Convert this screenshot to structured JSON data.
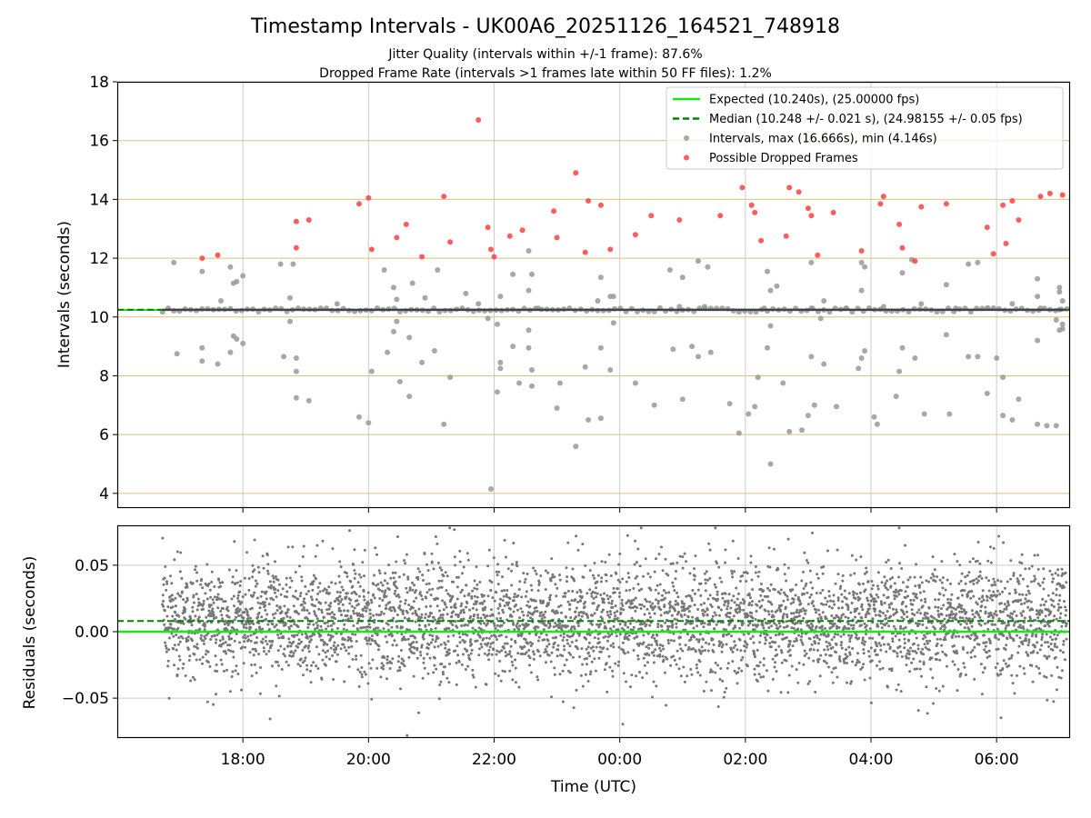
{
  "chart_data": [
    {
      "type": "scatter",
      "title": "Timestamp Intervals - UK00A6_20251126_164521_748918",
      "subtitle_1": "Jitter Quality (intervals within +/-1 frame): 87.6%",
      "subtitle_2": "Dropped Frame Rate (intervals >1 frames late within 50 FF files): 1.2%",
      "xlabel": "",
      "ylabel": "Intervals (seconds)",
      "xlim_hours": [
        16.0,
        31.17
      ],
      "ylim": [
        3.5,
        18
      ],
      "yticks": [
        4,
        6,
        8,
        10,
        12,
        14,
        16,
        18
      ],
      "ytick_labels": [
        "4",
        "6",
        "8",
        "10",
        "12",
        "14",
        "16",
        "18"
      ],
      "grid": true,
      "legend_position": "top-right",
      "expected_interval": 10.24,
      "median_interval": 10.248,
      "legend": [
        {
          "label": "Expected (10.240s), (25.00000 fps)",
          "style": "line",
          "color": "#19e619"
        },
        {
          "label": "Median (10.248 +/- 0.021 s), (24.98155 +/- 0.05 fps)",
          "style": "dashed",
          "color": "#008000"
        },
        {
          "label": "Intervals, max (16.666s), min (4.146s)",
          "style": "marker",
          "color": "#999999"
        },
        {
          "label": "Possible Dropped Frames",
          "style": "marker",
          "color": "#ff4040"
        }
      ],
      "series": [
        {
          "name": "Intervals",
          "color": "#999999",
          "points": [
            [
              16.9,
              11.85
            ],
            [
              16.95,
              8.75
            ],
            [
              17.35,
              8.95
            ],
            [
              17.35,
              8.5
            ],
            [
              17.35,
              11.55
            ],
            [
              17.6,
              8.4
            ],
            [
              17.65,
              10.55
            ],
            [
              17.85,
              11.15
            ],
            [
              17.9,
              11.2
            ],
            [
              17.8,
              11.7
            ],
            [
              17.8,
              8.8
            ],
            [
              17.85,
              9.35
            ],
            [
              17.9,
              9.25
            ],
            [
              18.0,
              11.4
            ],
            [
              18.0,
              9.1
            ],
            [
              18.65,
              8.65
            ],
            [
              18.6,
              11.8
            ],
            [
              18.8,
              11.8
            ],
            [
              18.75,
              10.65
            ],
            [
              18.75,
              9.85
            ],
            [
              18.85,
              8.6
            ],
            [
              18.85,
              8.15
            ],
            [
              18.85,
              7.25
            ],
            [
              19.05,
              7.15
            ],
            [
              19.5,
              10.45
            ],
            [
              19.85,
              6.6
            ],
            [
              20.0,
              6.4
            ],
            [
              20.05,
              8.15
            ],
            [
              20.25,
              11.6
            ],
            [
              20.3,
              8.8
            ],
            [
              20.4,
              11.0
            ],
            [
              20.45,
              10.6
            ],
            [
              20.4,
              9.5
            ],
            [
              20.45,
              9.85
            ],
            [
              20.5,
              7.8
            ],
            [
              20.65,
              7.3
            ],
            [
              20.65,
              9.3
            ],
            [
              20.7,
              11.15
            ],
            [
              20.85,
              8.45
            ],
            [
              20.9,
              10.65
            ],
            [
              21.1,
              11.6
            ],
            [
              21.05,
              8.85
            ],
            [
              21.2,
              6.35
            ],
            [
              21.3,
              7.95
            ],
            [
              21.55,
              10.8
            ],
            [
              21.75,
              10.45
            ],
            [
              21.9,
              9.95
            ],
            [
              21.95,
              4.15
            ],
            [
              22.05,
              7.45
            ],
            [
              22.05,
              9.75
            ],
            [
              22.1,
              10.7
            ],
            [
              22.1,
              8.25
            ],
            [
              22.1,
              8.45
            ],
            [
              22.3,
              11.45
            ],
            [
              22.3,
              9.0
            ],
            [
              22.4,
              7.75
            ],
            [
              22.55,
              12.25
            ],
            [
              22.6,
              11.45
            ],
            [
              22.55,
              10.9
            ],
            [
              22.55,
              9.55
            ],
            [
              22.55,
              8.95
            ],
            [
              22.6,
              8.2
            ],
            [
              22.6,
              7.65
            ],
            [
              22.7,
              10.3
            ],
            [
              23.0,
              6.9
            ],
            [
              23.05,
              7.75
            ],
            [
              23.3,
              5.6
            ],
            [
              23.45,
              8.3
            ],
            [
              23.5,
              6.5
            ],
            [
              23.65,
              10.55
            ],
            [
              23.7,
              11.35
            ],
            [
              23.7,
              8.95
            ],
            [
              23.7,
              6.55
            ],
            [
              23.85,
              10.7
            ],
            [
              23.9,
              9.8
            ],
            [
              23.85,
              8.2
            ],
            [
              23.9,
              10.7
            ],
            [
              24.25,
              7.75
            ],
            [
              24.55,
              7.0
            ],
            [
              24.8,
              11.6
            ],
            [
              24.85,
              8.9
            ],
            [
              24.95,
              10.35
            ],
            [
              25.0,
              11.35
            ],
            [
              25.0,
              7.2
            ],
            [
              25.15,
              9.0
            ],
            [
              25.25,
              11.9
            ],
            [
              25.25,
              8.65
            ],
            [
              25.35,
              10.35
            ],
            [
              25.4,
              11.7
            ],
            [
              25.45,
              8.8
            ],
            [
              25.75,
              7.05
            ],
            [
              25.9,
              6.05
            ],
            [
              26.05,
              6.7
            ],
            [
              26.15,
              6.95
            ],
            [
              26.2,
              7.95
            ],
            [
              26.3,
              10.3
            ],
            [
              26.35,
              11.55
            ],
            [
              26.35,
              8.95
            ],
            [
              26.4,
              10.9
            ],
            [
              26.4,
              9.7
            ],
            [
              26.4,
              5.0
            ],
            [
              26.5,
              11.05
            ],
            [
              26.6,
              7.75
            ],
            [
              26.7,
              6.1
            ],
            [
              26.9,
              6.15
            ],
            [
              27.0,
              6.65
            ],
            [
              27.05,
              10.3
            ],
            [
              27.05,
              11.85
            ],
            [
              27.05,
              8.65
            ],
            [
              27.1,
              7.0
            ],
            [
              27.2,
              9.95
            ],
            [
              27.25,
              10.55
            ],
            [
              27.25,
              8.4
            ],
            [
              27.45,
              6.95
            ],
            [
              27.6,
              10.3
            ],
            [
              27.8,
              8.25
            ],
            [
              27.85,
              11.85
            ],
            [
              27.85,
              10.9
            ],
            [
              27.85,
              8.6
            ],
            [
              27.9,
              11.7
            ],
            [
              27.9,
              8.85
            ],
            [
              28.05,
              6.6
            ],
            [
              28.1,
              6.35
            ],
            [
              28.2,
              10.35
            ],
            [
              28.4,
              7.3
            ],
            [
              28.45,
              8.15
            ],
            [
              28.5,
              8.95
            ],
            [
              28.5,
              11.5
            ],
            [
              28.65,
              11.95
            ],
            [
              28.7,
              8.6
            ],
            [
              28.8,
              10.45
            ],
            [
              28.85,
              6.7
            ],
            [
              29.2,
              9.4
            ],
            [
              29.2,
              11.1
            ],
            [
              29.25,
              6.7
            ],
            [
              29.35,
              10.3
            ],
            [
              29.55,
              11.8
            ],
            [
              29.55,
              8.65
            ],
            [
              29.7,
              8.65
            ],
            [
              29.7,
              11.85
            ],
            [
              29.85,
              7.4
            ],
            [
              29.85,
              10.3
            ],
            [
              30.0,
              8.6
            ],
            [
              30.1,
              6.65
            ],
            [
              30.1,
              7.95
            ],
            [
              30.25,
              10.45
            ],
            [
              30.25,
              6.5
            ],
            [
              30.35,
              7.2
            ],
            [
              30.65,
              11.3
            ],
            [
              30.65,
              10.7
            ],
            [
              30.65,
              9.2
            ],
            [
              30.65,
              6.35
            ],
            [
              30.7,
              10.3
            ],
            [
              30.8,
              6.3
            ],
            [
              30.95,
              6.3
            ],
            [
              30.95,
              9.9
            ],
            [
              31.0,
              9.55
            ],
            [
              31.0,
              10.85
            ],
            [
              31.0,
              11.0
            ],
            [
              31.0,
              10.25
            ],
            [
              31.05,
              9.6
            ],
            [
              31.05,
              10.55
            ],
            [
              31.05,
              9.75
            ]
          ]
        },
        {
          "name": "Possible Dropped Frames",
          "color": "#ff4040",
          "points": [
            [
              17.35,
              12.0
            ],
            [
              17.6,
              12.1
            ],
            [
              18.85,
              13.25
            ],
            [
              18.85,
              12.35
            ],
            [
              19.05,
              13.3
            ],
            [
              19.85,
              13.85
            ],
            [
              20.0,
              14.05
            ],
            [
              20.05,
              12.3
            ],
            [
              20.45,
              12.7
            ],
            [
              20.6,
              13.15
            ],
            [
              20.85,
              12.05
            ],
            [
              21.2,
              14.1
            ],
            [
              21.3,
              12.55
            ],
            [
              21.75,
              16.7
            ],
            [
              21.9,
              13.05
            ],
            [
              21.95,
              12.3
            ],
            [
              22.0,
              12.05
            ],
            [
              22.25,
              12.75
            ],
            [
              22.45,
              12.95
            ],
            [
              22.95,
              13.6
            ],
            [
              23.0,
              12.7
            ],
            [
              23.3,
              14.9
            ],
            [
              23.45,
              12.2
            ],
            [
              23.5,
              13.95
            ],
            [
              23.7,
              13.8
            ],
            [
              23.85,
              12.3
            ],
            [
              24.25,
              12.8
            ],
            [
              24.5,
              13.45
            ],
            [
              24.95,
              13.3
            ],
            [
              25.6,
              13.45
            ],
            [
              25.95,
              14.4
            ],
            [
              26.1,
              13.8
            ],
            [
              26.15,
              13.55
            ],
            [
              26.25,
              12.6
            ],
            [
              26.65,
              12.75
            ],
            [
              26.7,
              14.4
            ],
            [
              26.85,
              14.25
            ],
            [
              27.0,
              13.7
            ],
            [
              27.05,
              13.45
            ],
            [
              27.15,
              12.1
            ],
            [
              27.4,
              13.55
            ],
            [
              27.85,
              12.25
            ],
            [
              28.15,
              13.85
            ],
            [
              28.2,
              14.1
            ],
            [
              28.45,
              13.15
            ],
            [
              28.5,
              12.35
            ],
            [
              28.7,
              11.9
            ],
            [
              28.8,
              13.75
            ],
            [
              29.2,
              13.85
            ],
            [
              29.85,
              13.05
            ],
            [
              29.95,
              12.15
            ],
            [
              30.1,
              13.8
            ],
            [
              30.15,
              12.5
            ],
            [
              30.25,
              13.95
            ],
            [
              30.35,
              13.3
            ],
            [
              30.7,
              14.1
            ],
            [
              30.85,
              14.2
            ],
            [
              31.05,
              14.15
            ]
          ]
        }
      ]
    },
    {
      "type": "scatter",
      "title": "",
      "xlabel": "Time (UTC)",
      "ylabel": "Residuals (seconds)",
      "xlim_hours": [
        16.0,
        31.17
      ],
      "ylim": [
        -0.08,
        0.08
      ],
      "yticks": [
        -0.05,
        0.0,
        0.05
      ],
      "ytick_labels": [
        "−0.05",
        "0.00",
        "0.05"
      ],
      "xticks_hours": [
        18,
        20,
        22,
        24,
        26,
        28,
        30
      ],
      "xtick_labels": [
        "18:00",
        "20:00",
        "22:00",
        "00:00",
        "02:00",
        "04:00",
        "06:00"
      ],
      "grid": true,
      "expected_residual": 0.0,
      "median_residual": 0.008,
      "residual_color": "#777777",
      "residual_spread_sd": 0.022,
      "residual_count": 4400
    }
  ]
}
